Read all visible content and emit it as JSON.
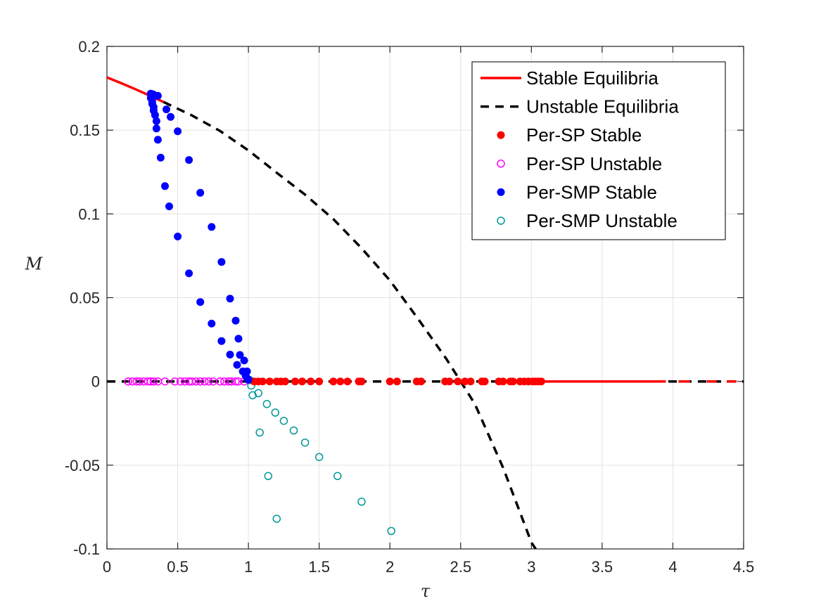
{
  "chart_data": {
    "type": "scatter",
    "title": "",
    "xlabel": "τ",
    "ylabel": "M",
    "xlim": [
      0,
      4.5
    ],
    "ylim": [
      -0.1,
      0.2
    ],
    "grid": true,
    "legend_position": "top-right",
    "x_ticks": [
      "0",
      "0.5",
      "1",
      "1.5",
      "2",
      "2.5",
      "3",
      "3.5",
      "4",
      "4.5"
    ],
    "y_ticks": [
      "-0.1",
      "-0.05",
      "0",
      "0.05",
      "0.1",
      "0.15",
      "0.2"
    ],
    "colors": {
      "stable": "#ff0000",
      "unstable": "#000000",
      "per_sp_stable": "#ff0000",
      "per_sp_unstable": "#ff00ff",
      "per_smp_stable": "#0000ff",
      "per_smp_unstable": "#009999"
    },
    "series": [
      {
        "name": "Stable Equilibria",
        "style": "solid-line",
        "segments": [
          [
            [
              0,
              0.1815
            ],
            [
              0.1,
              0.1781
            ],
            [
              0.2,
              0.1745
            ],
            [
              0.3,
              0.1707
            ],
            [
              0.4,
              0.1668
            ]
          ],
          [
            [
              3.05,
              0
            ],
            [
              3.95,
              0
            ]
          ],
          [
            [
              4.04,
              0
            ],
            [
              4.12,
              0
            ]
          ],
          [
            [
              4.24,
              0
            ],
            [
              4.31,
              0
            ]
          ],
          [
            [
              4.38,
              0
            ],
            [
              4.45,
              0
            ]
          ]
        ]
      },
      {
        "name": "Unstable Equilibria",
        "style": "dashed-line",
        "segments": [
          [
            [
              0.4,
              0.1668
            ],
            [
              0.6,
              0.1588
            ],
            [
              0.8,
              0.1495
            ],
            [
              1.0,
              0.1379
            ],
            [
              1.2,
              0.1246
            ],
            [
              1.4,
              0.1115
            ],
            [
              1.6,
              0.0969
            ],
            [
              1.8,
              0.0795
            ],
            [
              2.0,
              0.0603
            ],
            [
              2.2,
              0.0373
            ],
            [
              2.4,
              0.0133
            ],
            [
              2.5,
              0.0
            ],
            [
              2.6,
              -0.0134
            ],
            [
              2.8,
              -0.0515
            ],
            [
              3.0,
              -0.0961
            ],
            [
              3.03,
              -0.1
            ]
          ],
          [
            [
              0,
              0
            ],
            [
              4.5,
              0
            ]
          ]
        ]
      },
      {
        "name": "Per-SP Stable",
        "style": "filled-marker",
        "points": [
          [
            1.04,
            0
          ],
          [
            1.07,
            0
          ],
          [
            1.1,
            0
          ],
          [
            1.15,
            0
          ],
          [
            1.2,
            0
          ],
          [
            1.23,
            0
          ],
          [
            1.26,
            0
          ],
          [
            1.33,
            0
          ],
          [
            1.38,
            0
          ],
          [
            1.44,
            0
          ],
          [
            1.5,
            0
          ],
          [
            1.6,
            0
          ],
          [
            1.65,
            0
          ],
          [
            1.7,
            0
          ],
          [
            1.78,
            0
          ],
          [
            1.8,
            0
          ],
          [
            2.0,
            0
          ],
          [
            2.05,
            0
          ],
          [
            2.19,
            0
          ],
          [
            2.22,
            0
          ],
          [
            2.39,
            0
          ],
          [
            2.42,
            0
          ],
          [
            2.48,
            0
          ],
          [
            2.53,
            0
          ],
          [
            2.57,
            0
          ],
          [
            2.65,
            0
          ],
          [
            2.67,
            0
          ],
          [
            2.77,
            0
          ],
          [
            2.8,
            0
          ],
          [
            2.85,
            0
          ],
          [
            2.87,
            0
          ],
          [
            2.92,
            0
          ],
          [
            2.95,
            0
          ],
          [
            2.98,
            0
          ],
          [
            3.01,
            0
          ],
          [
            3.03,
            0
          ],
          [
            3.05,
            0
          ],
          [
            3.07,
            0
          ]
        ]
      },
      {
        "name": "Per-SP Unstable",
        "style": "open-marker",
        "points": [
          [
            0.15,
            0
          ],
          [
            0.18,
            0
          ],
          [
            0.21,
            0
          ],
          [
            0.23,
            0
          ],
          [
            0.26,
            0
          ],
          [
            0.29,
            0
          ],
          [
            0.31,
            0
          ],
          [
            0.33,
            0
          ],
          [
            0.36,
            0
          ],
          [
            0.41,
            0
          ],
          [
            0.48,
            0
          ],
          [
            0.52,
            0
          ],
          [
            0.55,
            0
          ],
          [
            0.58,
            0
          ],
          [
            0.6,
            0
          ],
          [
            0.63,
            0
          ],
          [
            0.66,
            0
          ],
          [
            0.69,
            0
          ],
          [
            0.72,
            0
          ],
          [
            0.75,
            0
          ],
          [
            0.8,
            0
          ],
          [
            0.83,
            0
          ],
          [
            0.86,
            0
          ],
          [
            0.88,
            0
          ],
          [
            0.91,
            0
          ],
          [
            0.93,
            0
          ],
          [
            0.97,
            0
          ]
        ]
      },
      {
        "name": "Per-SMP Stable",
        "style": "filled-marker",
        "points": [
          [
            0.31,
            0.1718
          ],
          [
            0.32,
            0.1715
          ],
          [
            0.33,
            0.1712
          ],
          [
            0.31,
            0.1692
          ],
          [
            0.32,
            0.1672
          ],
          [
            0.32,
            0.1657
          ],
          [
            0.33,
            0.1638
          ],
          [
            0.33,
            0.1617
          ],
          [
            0.34,
            0.159
          ],
          [
            0.35,
            0.1554
          ],
          [
            0.35,
            0.151
          ],
          [
            0.36,
            0.1443
          ],
          [
            0.38,
            0.1336
          ],
          [
            0.41,
            0.1166
          ],
          [
            0.44,
            0.1045
          ],
          [
            0.5,
            0.0865
          ],
          [
            0.58,
            0.0645
          ],
          [
            0.66,
            0.0474
          ],
          [
            0.74,
            0.0345
          ],
          [
            0.81,
            0.0241
          ],
          [
            0.87,
            0.016
          ],
          [
            0.92,
            0.0099
          ],
          [
            0.96,
            0.006
          ],
          [
            0.98,
            0.0035
          ],
          [
            0.99,
            0.002
          ],
          [
            1.0,
            0.001
          ],
          [
            0.36,
            0.1705
          ],
          [
            0.42,
            0.1624
          ],
          [
            0.45,
            0.1579
          ],
          [
            0.5,
            0.1493
          ],
          [
            0.58,
            0.1322
          ],
          [
            0.66,
            0.1126
          ],
          [
            0.74,
            0.0922
          ],
          [
            0.81,
            0.0713
          ],
          [
            0.87,
            0.0494
          ],
          [
            0.91,
            0.0363
          ],
          [
            0.93,
            0.0255
          ],
          [
            0.94,
            0.0158
          ],
          [
            0.97,
            0.0125
          ],
          [
            0.99,
            0.006
          ]
        ]
      },
      {
        "name": "Per-SMP Unstable",
        "style": "open-marker",
        "points": [
          [
            1.01,
            0.0008
          ],
          [
            1.02,
            -0.0025
          ],
          [
            1.03,
            -0.0083
          ],
          [
            1.07,
            -0.007
          ],
          [
            1.08,
            -0.0305
          ],
          [
            1.13,
            -0.0135
          ],
          [
            1.14,
            -0.0565
          ],
          [
            1.19,
            -0.0186
          ],
          [
            1.2,
            -0.082
          ],
          [
            1.25,
            -0.0235
          ],
          [
            1.32,
            -0.0293
          ],
          [
            1.4,
            -0.0365
          ],
          [
            1.5,
            -0.0451
          ],
          [
            1.63,
            -0.0565
          ],
          [
            1.8,
            -0.0718
          ],
          [
            2.01,
            -0.0893
          ]
        ]
      }
    ]
  }
}
